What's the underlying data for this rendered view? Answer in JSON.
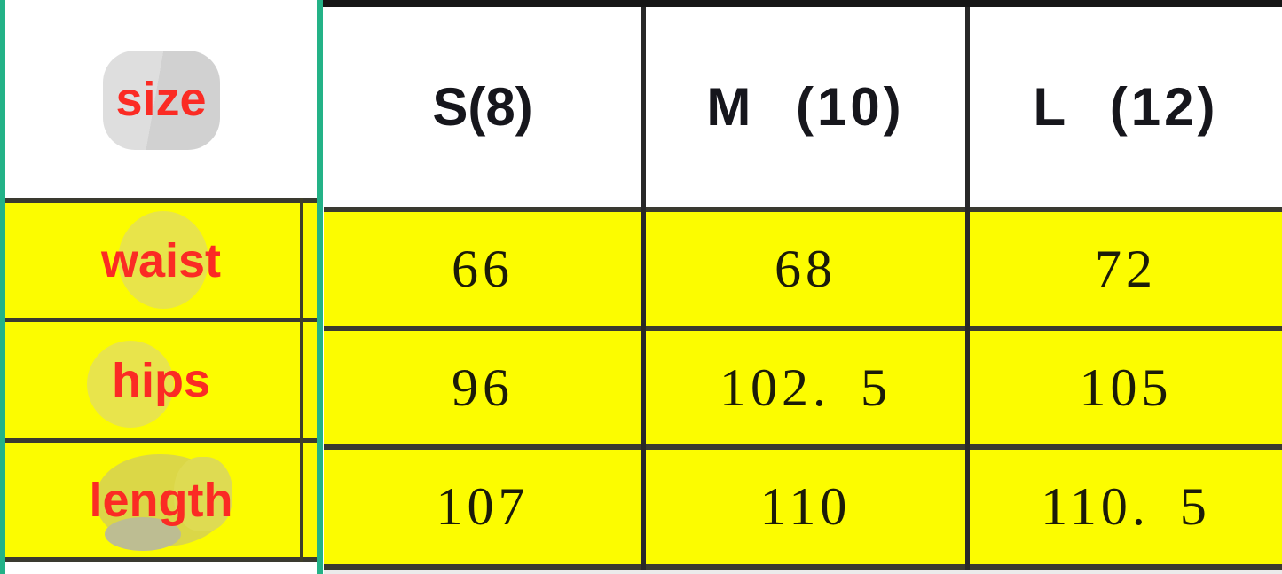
{
  "colors": {
    "highlight_yellow": "#fcfc00",
    "selection_teal": "#23b287",
    "label_red": "#fb2b24",
    "grid_line": "#3a3a30",
    "top_border_black": "#161616"
  },
  "table": {
    "corner_label": "size",
    "col_headers": [
      "S(8)",
      "M (10)",
      "L (12)"
    ],
    "rows": [
      {
        "label": "waist",
        "values": [
          "66",
          "68",
          "72"
        ]
      },
      {
        "label": "hips",
        "values": [
          "96",
          "102. 5",
          "105"
        ]
      },
      {
        "label": "length",
        "values": [
          "107",
          "110",
          "110. 5"
        ]
      }
    ]
  },
  "chart_data": {
    "type": "table",
    "title": "size",
    "categories": [
      "S(8)",
      "M (10)",
      "L (12)"
    ],
    "series": [
      {
        "name": "waist",
        "values": [
          66,
          68,
          72
        ]
      },
      {
        "name": "hips",
        "values": [
          96,
          102.5,
          105
        ]
      },
      {
        "name": "length",
        "values": [
          107,
          110,
          110.5
        ]
      }
    ]
  }
}
